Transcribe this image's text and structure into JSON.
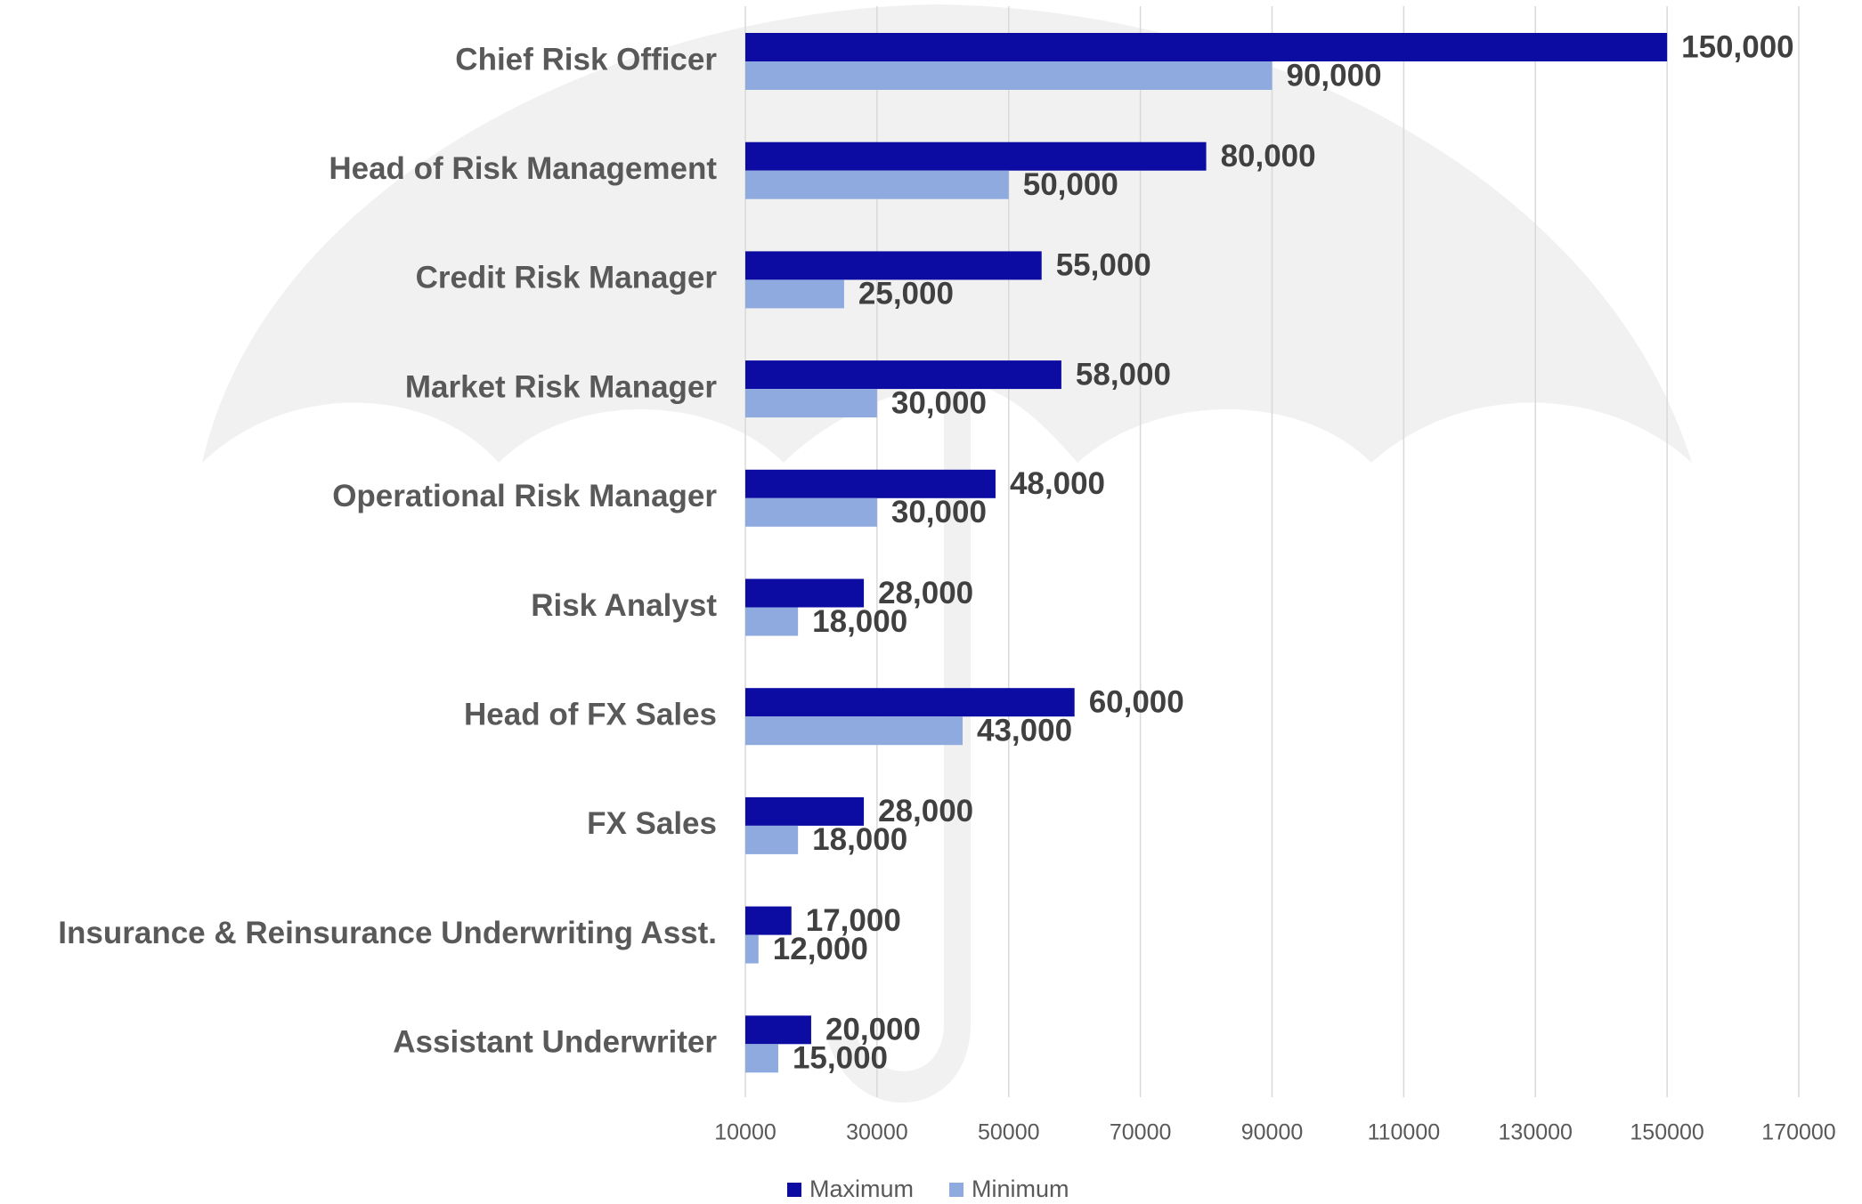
{
  "chart_data": {
    "type": "bar",
    "orientation": "horizontal",
    "categories": [
      "Chief Risk Officer",
      "Head of Risk Management",
      "Credit Risk Manager",
      "Market Risk Manager",
      "Operational Risk Manager",
      "Risk Analyst",
      "Head of FX Sales",
      "FX Sales",
      "Insurance & Reinsurance Underwriting Asst.",
      "Assistant Underwriter"
    ],
    "series": [
      {
        "name": "Maximum",
        "color": "#0c0ca3",
        "values": [
          150000,
          80000,
          55000,
          58000,
          48000,
          28000,
          60000,
          28000,
          17000,
          20000
        ],
        "value_labels": [
          "150,000",
          "80,000",
          "55,000",
          "58,000",
          "48,000",
          "28,000",
          "60,000",
          "28,000",
          "17,000",
          "20,000"
        ]
      },
      {
        "name": "Minimum",
        "color": "#8eaade",
        "values": [
          90000,
          50000,
          25000,
          30000,
          30000,
          18000,
          43000,
          18000,
          12000,
          15000
        ],
        "value_labels": [
          "90,000",
          "50,000",
          "25,000",
          "30,000",
          "30,000",
          "18,000",
          "43,000",
          "18,000",
          "12,000",
          "15,000"
        ]
      }
    ],
    "xlim": [
      10000,
      170000
    ],
    "xticks": [
      10000,
      30000,
      50000,
      70000,
      90000,
      110000,
      130000,
      150000,
      170000
    ],
    "grid": true,
    "legend": "bottom"
  }
}
